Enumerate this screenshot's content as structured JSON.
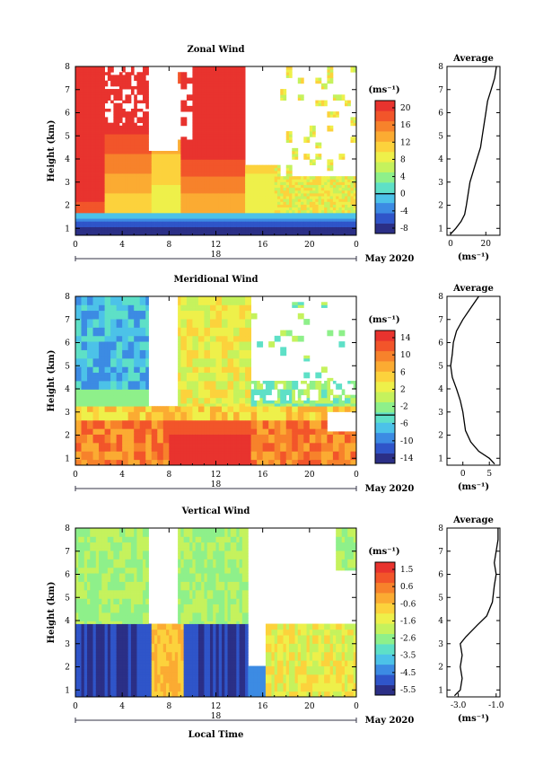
{
  "chart_data": [
    {
      "type": "heatmap",
      "title": "Zonal Wind",
      "ylabel": "Height (km)",
      "y_ticks": [
        "1",
        "2",
        "3",
        "4",
        "5",
        "6",
        "7",
        "8"
      ],
      "ylim": [
        0.7,
        8
      ],
      "x_ticks": [
        "0",
        "4",
        "8",
        "12",
        "16",
        "20",
        "0"
      ],
      "xlim": [
        0,
        24
      ],
      "day_label": "18",
      "date_label": "May 2020",
      "colorbar": {
        "unit": "(ms⁻¹)",
        "ticks": [
          "20",
          "16",
          "12",
          "8",
          "4",
          "0",
          "-4",
          "-8"
        ],
        "min": -10,
        "max": 22,
        "colors": [
          "#2b2f86",
          "#2f55c9",
          "#3c8be3",
          "#4cc2e8",
          "#5ee0c7",
          "#8ef08a",
          "#c5f25d",
          "#eef04a",
          "#fcd23c",
          "#fbab32",
          "#f7822b",
          "#f2552a",
          "#e8332e"
        ]
      },
      "average_panel": {
        "title": "Average",
        "x_ticks": [
          "0",
          "20"
        ],
        "xlim": [
          -2,
          28
        ],
        "xunit": "(ms⁻¹)",
        "profile": [
          {
            "h": 0.75,
            "v": 0
          },
          {
            "h": 1.0,
            "v": 3
          },
          {
            "h": 1.3,
            "v": 6
          },
          {
            "h": 1.6,
            "v": 8
          },
          {
            "h": 2.0,
            "v": 9
          },
          {
            "h": 2.5,
            "v": 10
          },
          {
            "h": 3.0,
            "v": 11
          },
          {
            "h": 3.5,
            "v": 13
          },
          {
            "h": 4.0,
            "v": 15
          },
          {
            "h": 4.5,
            "v": 17
          },
          {
            "h": 5.0,
            "v": 18
          },
          {
            "h": 5.5,
            "v": 19
          },
          {
            "h": 6.0,
            "v": 20
          },
          {
            "h": 6.5,
            "v": 21
          },
          {
            "h": 7.0,
            "v": 23
          },
          {
            "h": 7.5,
            "v": 25
          },
          {
            "h": 8.0,
            "v": 26
          }
        ]
      }
    },
    {
      "type": "heatmap",
      "title": "Meridional Wind",
      "ylabel": "Height (km)",
      "y_ticks": [
        "1",
        "2",
        "3",
        "4",
        "5",
        "6",
        "7",
        "8"
      ],
      "ylim": [
        0.7,
        8
      ],
      "x_ticks": [
        "0",
        "4",
        "8",
        "12",
        "16",
        "20",
        "0"
      ],
      "xlim": [
        0,
        24
      ],
      "day_label": "18",
      "date_label": "May 2020",
      "colorbar": {
        "unit": "(ms⁻¹)",
        "ticks": [
          "14",
          "10",
          "6",
          "2",
          "-2",
          "-6",
          "-10",
          "-14"
        ],
        "min": -16,
        "max": 16,
        "colors": [
          "#2b2f86",
          "#2f55c9",
          "#3c8be3",
          "#4cc2e8",
          "#5ee0c7",
          "#8ef08a",
          "#c5f25d",
          "#eef04a",
          "#fcd23c",
          "#fbab32",
          "#f7822b",
          "#f2552a",
          "#e8332e"
        ]
      },
      "average_panel": {
        "title": "Average",
        "x_ticks": [
          "0",
          "5"
        ],
        "xlim": [
          -3,
          7
        ],
        "xunit": "(ms⁻¹)",
        "profile": [
          {
            "h": 0.75,
            "v": 6
          },
          {
            "h": 1.0,
            "v": 5
          },
          {
            "h": 1.3,
            "v": 3
          },
          {
            "h": 1.7,
            "v": 1.5
          },
          {
            "h": 2.2,
            "v": 0.5
          },
          {
            "h": 3.0,
            "v": 0
          },
          {
            "h": 3.5,
            "v": -0.5
          },
          {
            "h": 4.0,
            "v": -1.2
          },
          {
            "h": 4.5,
            "v": -2.0
          },
          {
            "h": 5.0,
            "v": -2.3
          },
          {
            "h": 5.5,
            "v": -2.0
          },
          {
            "h": 6.0,
            "v": -1.8
          },
          {
            "h": 6.5,
            "v": -1.2
          },
          {
            "h": 7.0,
            "v": 0
          },
          {
            "h": 7.5,
            "v": 1.5
          },
          {
            "h": 8.0,
            "v": 3
          }
        ]
      }
    },
    {
      "type": "heatmap",
      "title": "Vertical Wind",
      "ylabel": "Height (km)",
      "xlabel": "Local Time",
      "y_ticks": [
        "1",
        "2",
        "3",
        "4",
        "5",
        "6",
        "7",
        "8"
      ],
      "ylim": [
        0.7,
        8
      ],
      "x_ticks": [
        "0",
        "4",
        "8",
        "12",
        "16",
        "20",
        "0"
      ],
      "xlim": [
        0,
        24
      ],
      "day_label": "18",
      "date_label": "May 2020",
      "colorbar": {
        "unit": "(ms⁻¹)",
        "ticks": [
          "1.5",
          "0.6",
          "-0.6",
          "-1.6",
          "-2.6",
          "-3.5",
          "-4.5",
          "-5.5"
        ],
        "min": -6,
        "max": 2,
        "colors": [
          "#2b2f86",
          "#2f55c9",
          "#3c8be3",
          "#4cc2e8",
          "#5ee0c7",
          "#8ef08a",
          "#c5f25d",
          "#eef04a",
          "#fcd23c",
          "#fbab32",
          "#f7822b",
          "#f2552a",
          "#e8332e"
        ]
      },
      "average_panel": {
        "title": "Average",
        "x_ticks": [
          "-3.0",
          "-1.0"
        ],
        "xlim": [
          -3.6,
          -0.8
        ],
        "xunit": "(ms⁻¹)",
        "profile": [
          {
            "h": 0.75,
            "v": -3.2
          },
          {
            "h": 1.0,
            "v": -2.9
          },
          {
            "h": 1.5,
            "v": -2.8
          },
          {
            "h": 2.0,
            "v": -2.9
          },
          {
            "h": 2.5,
            "v": -2.8
          },
          {
            "h": 3.0,
            "v": -2.9
          },
          {
            "h": 3.3,
            "v": -2.6
          },
          {
            "h": 3.8,
            "v": -2.0
          },
          {
            "h": 4.2,
            "v": -1.5
          },
          {
            "h": 4.8,
            "v": -1.2
          },
          {
            "h": 5.5,
            "v": -1.1
          },
          {
            "h": 6.0,
            "v": -1.0
          },
          {
            "h": 6.5,
            "v": -1.1
          },
          {
            "h": 7.0,
            "v": -1.0
          },
          {
            "h": 7.5,
            "v": -0.9
          },
          {
            "h": 8.0,
            "v": -0.9
          }
        ]
      }
    }
  ]
}
